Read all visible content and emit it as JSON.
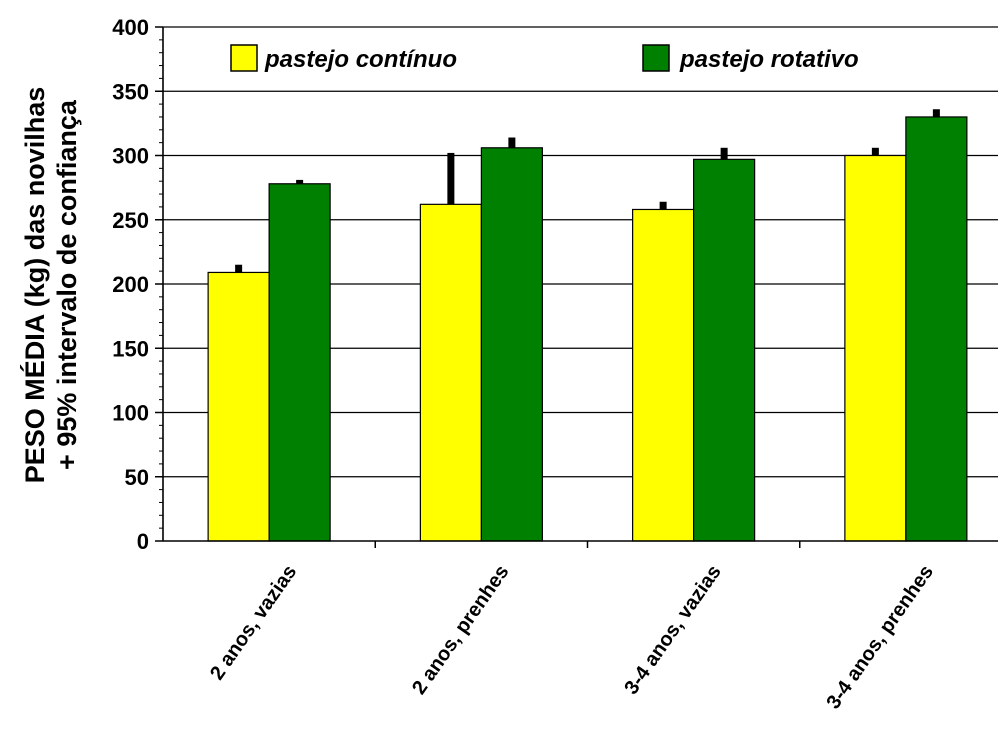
{
  "chart_data": {
    "type": "bar",
    "categories": [
      "2 anos, vazias",
      "2 anos, prenhes",
      "3-4 anos, vazias",
      "3-4 anos, prenhes"
    ],
    "series": [
      {
        "name": "pastejo contínuo",
        "color": "#ffff00",
        "values": [
          209,
          262,
          258,
          300
        ],
        "error": [
          6,
          40,
          6,
          6
        ]
      },
      {
        "name": "pastejo rotativo",
        "color": "#008000",
        "values": [
          278,
          306,
          297,
          330
        ],
        "error": [
          3,
          8,
          9,
          6
        ]
      }
    ],
    "ylabel_line1": "PESO MÉDIA (kg) das novilhas",
    "ylabel_line2": "+ 95% intervalo de confiança",
    "ylim": [
      0,
      400
    ],
    "yticks": [
      "0",
      "50",
      "100",
      "150",
      "200",
      "250",
      "300",
      "350",
      "400"
    ],
    "grid": true,
    "legend_position": "top"
  }
}
